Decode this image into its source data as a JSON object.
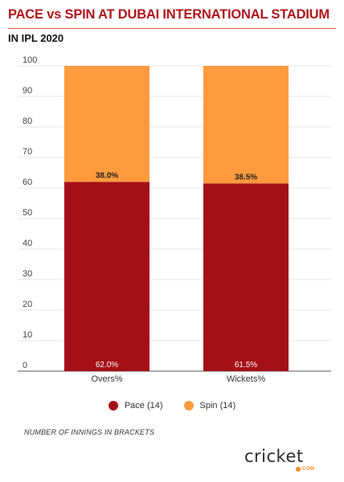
{
  "title": "PACE vs SPIN AT DUBAI INTERNATIONAL STADIUM",
  "subtitle": "IN IPL 2020",
  "note": "NUMBER OF INNINGS IN BRACKETS",
  "logo": {
    "text": "cricket",
    "sub": "COM"
  },
  "colors": {
    "pace": "#a51018",
    "spin": "#ff9b3d",
    "title": "#b0151c"
  },
  "chart_data": {
    "type": "bar",
    "stacked": true,
    "categories": [
      "Overs%",
      "Wickets%"
    ],
    "series": [
      {
        "name": "Pace (14)",
        "values": [
          62.0,
          61.5
        ],
        "labels": [
          "62.0%",
          "61.5%"
        ]
      },
      {
        "name": "Spin (14)",
        "values": [
          38.0,
          38.5
        ],
        "labels": [
          "38.0%",
          "38.5%"
        ]
      }
    ],
    "ylim": [
      0,
      100
    ],
    "yticks": [
      0,
      10,
      20,
      30,
      40,
      50,
      60,
      70,
      80,
      90,
      100
    ],
    "grid": true,
    "legend": "bottom"
  }
}
